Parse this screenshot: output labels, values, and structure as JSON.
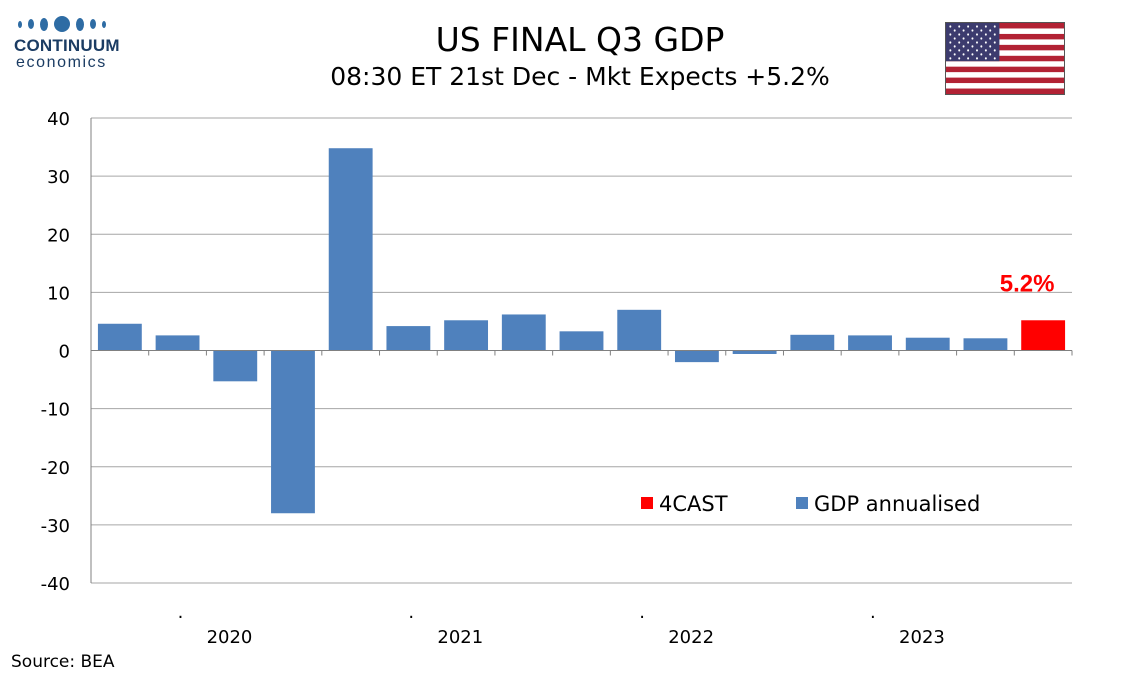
{
  "brand": {
    "line1": "CONTINUUM",
    "line2": "economics",
    "color": "#1b3c63"
  },
  "header": {
    "title": "US FINAL Q3 GDP",
    "subtitle": "08:30 ET 21st Dec - Mkt Expects +5.2%"
  },
  "source": "Source: BEA",
  "colors": {
    "gdp": "#4f81bd",
    "forecast": "#ff0000"
  },
  "chart_data": {
    "type": "bar",
    "title": "US FINAL Q3 GDP",
    "subtitle": "08:30 ET 21st Dec - Mkt Expects +5.2%",
    "ylim": [
      -40,
      40
    ],
    "yticks": [
      40,
      30,
      20,
      10,
      0,
      -10,
      -20,
      -30,
      -40
    ],
    "grid": true,
    "legend_position": "bottom-right",
    "year_labels": [
      "2020",
      "2021",
      "2022",
      "2023"
    ],
    "separator_marks": [
      ".",
      ".",
      ".",
      "."
    ],
    "series": [
      {
        "name": "GDP annualised",
        "color": "#4f81bd",
        "values": [
          4.6,
          2.6,
          -5.3,
          -28.0,
          34.8,
          4.2,
          5.2,
          6.2,
          3.3,
          7.0,
          -2.0,
          -0.6,
          2.7,
          2.6,
          2.2,
          2.1,
          null
        ]
      },
      {
        "name": "4CAST",
        "color": "#ff0000",
        "values": [
          null,
          null,
          null,
          null,
          null,
          null,
          null,
          null,
          null,
          null,
          null,
          null,
          null,
          null,
          null,
          null,
          5.2
        ]
      }
    ],
    "annotations": [
      {
        "text": "5.2%"
      }
    ]
  }
}
